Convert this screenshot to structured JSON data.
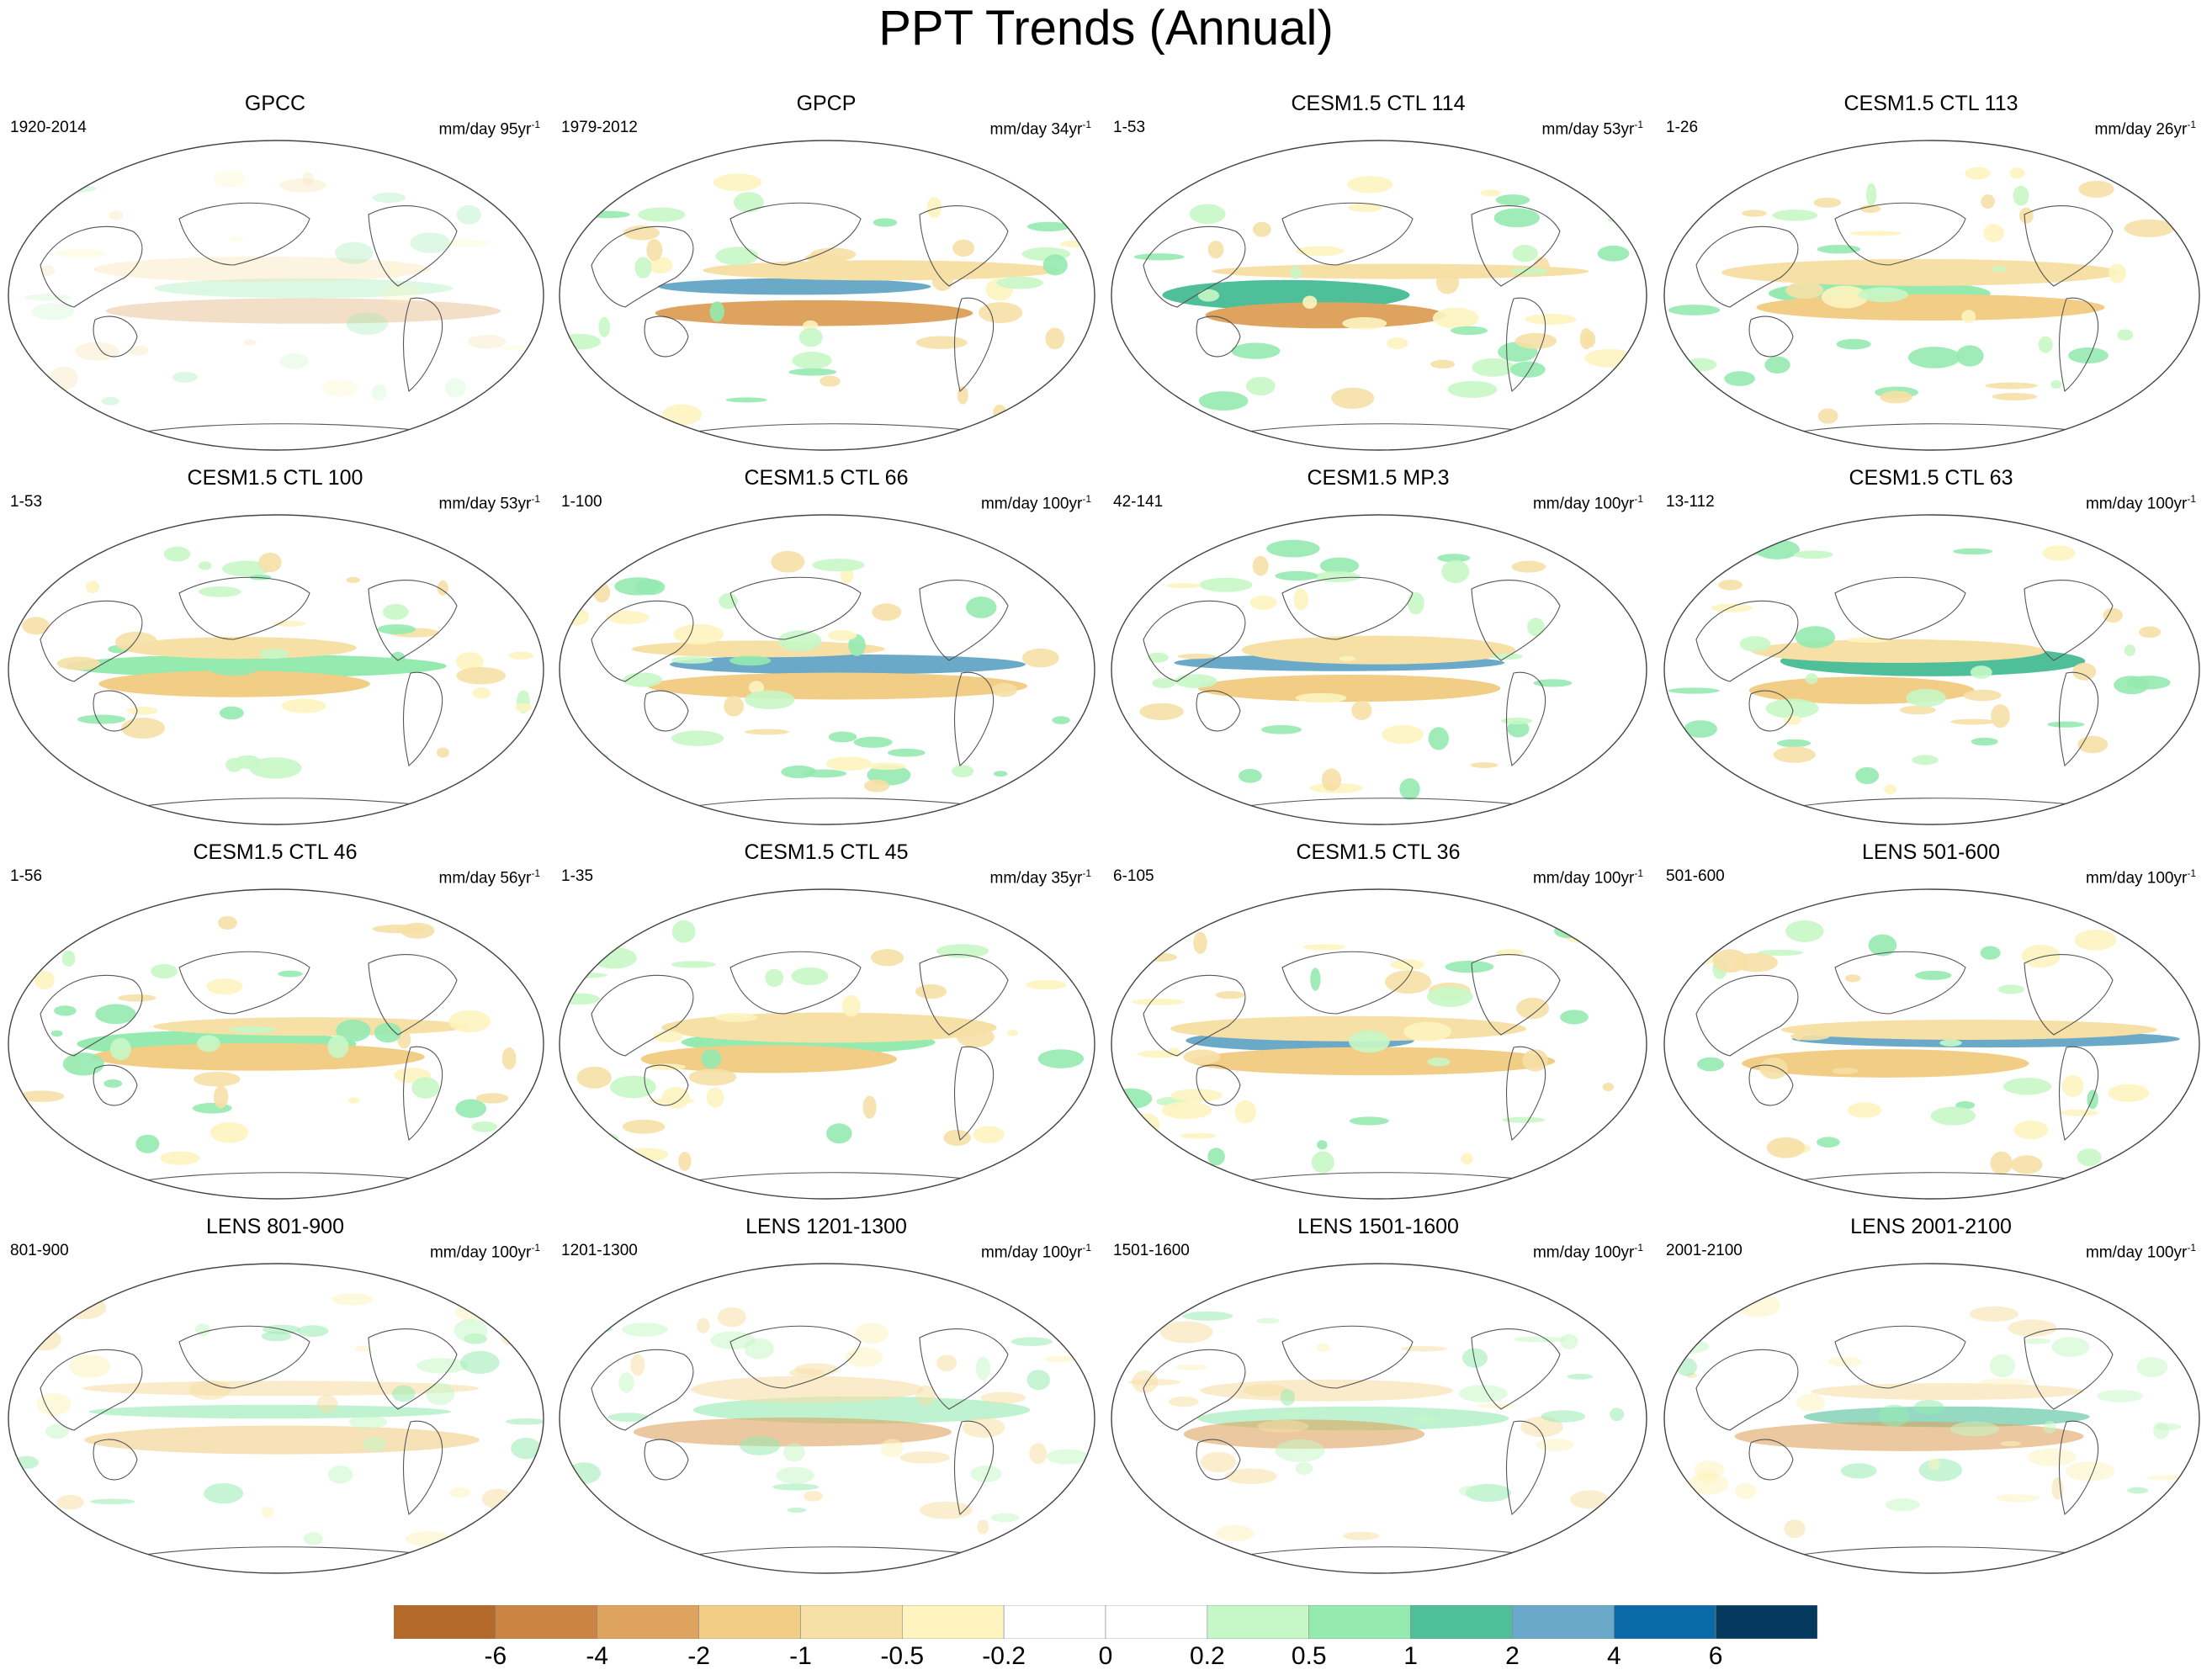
{
  "figure": {
    "title": "PPT Trends (Annual)",
    "panels": [
      {
        "title": "GPCC",
        "period": "1920-2014",
        "units_prefix": "mm/day 95yr",
        "units_exp": "-1"
      },
      {
        "title": "GPCP",
        "period": "1979-2012",
        "units_prefix": "mm/day 34yr",
        "units_exp": "-1"
      },
      {
        "title": "CESM1.5 CTL 114",
        "period": "1-53",
        "units_prefix": "mm/day 53yr",
        "units_exp": "-1"
      },
      {
        "title": "CESM1.5 CTL 113",
        "period": "1-26",
        "units_prefix": "mm/day 26yr",
        "units_exp": "-1"
      },
      {
        "title": "CESM1.5 CTL 100",
        "period": "1-53",
        "units_prefix": "mm/day 53yr",
        "units_exp": "-1"
      },
      {
        "title": "CESM1.5 CTL 66",
        "period": "1-100",
        "units_prefix": "mm/day 100yr",
        "units_exp": "-1"
      },
      {
        "title": "CESM1.5 MP.3",
        "period": "42-141",
        "units_prefix": "mm/day 100yr",
        "units_exp": "-1"
      },
      {
        "title": "CESM1.5 CTL 63",
        "period": "13-112",
        "units_prefix": "mm/day 100yr",
        "units_exp": "-1"
      },
      {
        "title": "CESM1.5 CTL 46",
        "period": "1-56",
        "units_prefix": "mm/day 56yr",
        "units_exp": "-1"
      },
      {
        "title": "CESM1.5 CTL 45",
        "period": "1-35",
        "units_prefix": "mm/day 35yr",
        "units_exp": "-1"
      },
      {
        "title": "CESM1.5 CTL 36",
        "period": "6-105",
        "units_prefix": "mm/day 100yr",
        "units_exp": "-1"
      },
      {
        "title": "LENS 501-600",
        "period": "501-600",
        "units_prefix": "mm/day 100yr",
        "units_exp": "-1"
      },
      {
        "title": "LENS 801-900",
        "period": "801-900",
        "units_prefix": "mm/day 100yr",
        "units_exp": "-1"
      },
      {
        "title": "LENS 1201-1300",
        "period": "1201-1300",
        "units_prefix": "mm/day 100yr",
        "units_exp": "-1"
      },
      {
        "title": "LENS 1501-1600",
        "period": "1501-1600",
        "units_prefix": "mm/day 100yr",
        "units_exp": "-1"
      },
      {
        "title": "LENS 2001-2100",
        "period": "2001-2100",
        "units_prefix": "mm/day 100yr",
        "units_exp": "-1"
      }
    ],
    "colorbar": {
      "colors": [
        "#b2692a",
        "#cb8441",
        "#dea35f",
        "#f2cd85",
        "#f6e0a6",
        "#fdf4c0",
        "#ffffff",
        "#ffffff",
        "#c6f7c6",
        "#95eab0",
        "#4fbf9a",
        "#6aa9c8",
        "#0a6aa8",
        "#053a5e"
      ],
      "labels": [
        "-6",
        "-4",
        "-2",
        "-1",
        "-0.5",
        "-0.2",
        "0",
        "0.2",
        "0.5",
        "1",
        "2",
        "4",
        "6"
      ]
    }
  }
}
